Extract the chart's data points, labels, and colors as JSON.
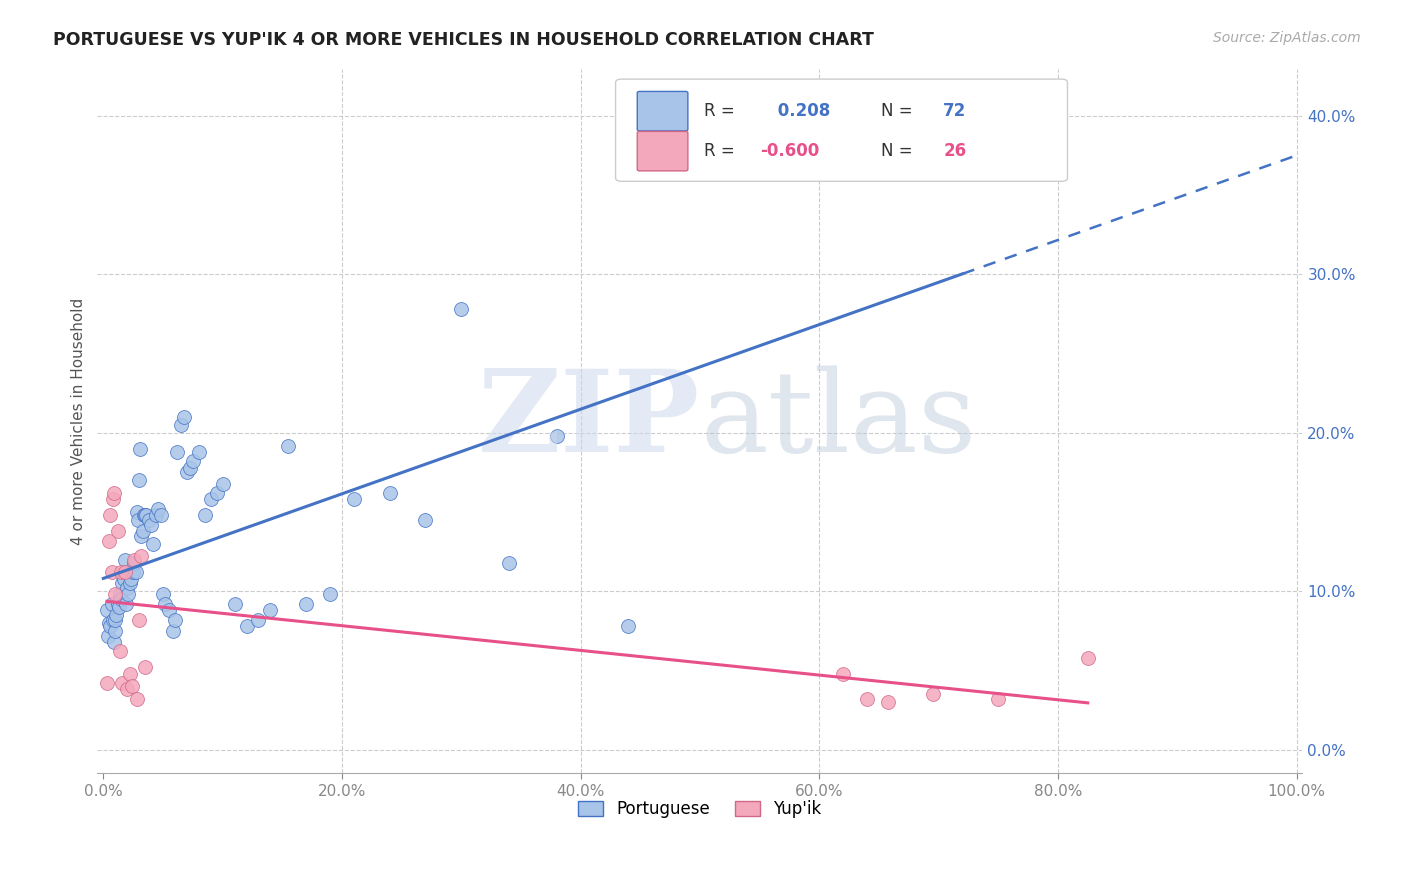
{
  "title": "PORTUGUESE VS YUP'IK 4 OR MORE VEHICLES IN HOUSEHOLD CORRELATION CHART",
  "source": "Source: ZipAtlas.com",
  "ylabel": "4 or more Vehicles in Household",
  "xlim": [
    -0.005,
    1.005
  ],
  "ylim": [
    -0.015,
    0.43
  ],
  "x_ticks": [
    0.0,
    0.2,
    0.4,
    0.6,
    0.8,
    1.0
  ],
  "x_tick_labels": [
    "0.0%",
    "20.0%",
    "40.0%",
    "60.0%",
    "80.0%",
    "100.0%"
  ],
  "y_ticks_right": [
    0.0,
    0.1,
    0.2,
    0.3,
    0.4
  ],
  "y_tick_labels_right": [
    "0.0%",
    "10.0%",
    "20.0%",
    "30.0%",
    "40.0%"
  ],
  "portuguese_color": "#a8c4e8",
  "yupik_color": "#f4a8bc",
  "portuguese_line_color": "#4472c4",
  "yupik_line_color": "#e8508a",
  "R_portuguese": 0.208,
  "N_portuguese": 72,
  "R_yupik": -0.6,
  "N_yupik": 26,
  "portuguese_x": [
    0.003,
    0.004,
    0.005,
    0.006,
    0.007,
    0.008,
    0.009,
    0.01,
    0.01,
    0.011,
    0.012,
    0.013,
    0.014,
    0.015,
    0.016,
    0.017,
    0.018,
    0.018,
    0.019,
    0.02,
    0.021,
    0.022,
    0.023,
    0.025,
    0.026,
    0.027,
    0.028,
    0.029,
    0.03,
    0.031,
    0.032,
    0.033,
    0.034,
    0.035,
    0.036,
    0.038,
    0.04,
    0.042,
    0.044,
    0.046,
    0.048,
    0.05,
    0.052,
    0.055,
    0.058,
    0.06,
    0.062,
    0.065,
    0.068,
    0.07,
    0.073,
    0.075,
    0.08,
    0.085,
    0.09,
    0.095,
    0.1,
    0.11,
    0.12,
    0.13,
    0.14,
    0.155,
    0.17,
    0.19,
    0.21,
    0.24,
    0.27,
    0.3,
    0.34,
    0.38,
    0.44,
    0.72
  ],
  "portuguese_y": [
    0.088,
    0.072,
    0.08,
    0.078,
    0.092,
    0.082,
    0.068,
    0.075,
    0.082,
    0.085,
    0.092,
    0.09,
    0.098,
    0.095,
    0.105,
    0.108,
    0.112,
    0.12,
    0.092,
    0.102,
    0.098,
    0.105,
    0.108,
    0.112,
    0.118,
    0.112,
    0.15,
    0.145,
    0.17,
    0.19,
    0.135,
    0.138,
    0.148,
    0.148,
    0.148,
    0.145,
    0.142,
    0.13,
    0.148,
    0.152,
    0.148,
    0.098,
    0.092,
    0.088,
    0.075,
    0.082,
    0.188,
    0.205,
    0.21,
    0.175,
    0.178,
    0.182,
    0.188,
    0.148,
    0.158,
    0.162,
    0.168,
    0.092,
    0.078,
    0.082,
    0.088,
    0.192,
    0.092,
    0.098,
    0.158,
    0.162,
    0.145,
    0.278,
    0.118,
    0.198,
    0.078,
    0.418
  ],
  "yupik_x": [
    0.003,
    0.005,
    0.006,
    0.007,
    0.008,
    0.009,
    0.01,
    0.012,
    0.014,
    0.015,
    0.016,
    0.018,
    0.02,
    0.022,
    0.024,
    0.026,
    0.028,
    0.03,
    0.032,
    0.035,
    0.62,
    0.64,
    0.658,
    0.695,
    0.75,
    0.825
  ],
  "yupik_y": [
    0.042,
    0.132,
    0.148,
    0.112,
    0.158,
    0.162,
    0.098,
    0.138,
    0.062,
    0.112,
    0.042,
    0.112,
    0.038,
    0.048,
    0.04,
    0.12,
    0.032,
    0.082,
    0.122,
    0.052,
    0.048,
    0.032,
    0.03,
    0.035,
    0.032,
    0.058
  ]
}
